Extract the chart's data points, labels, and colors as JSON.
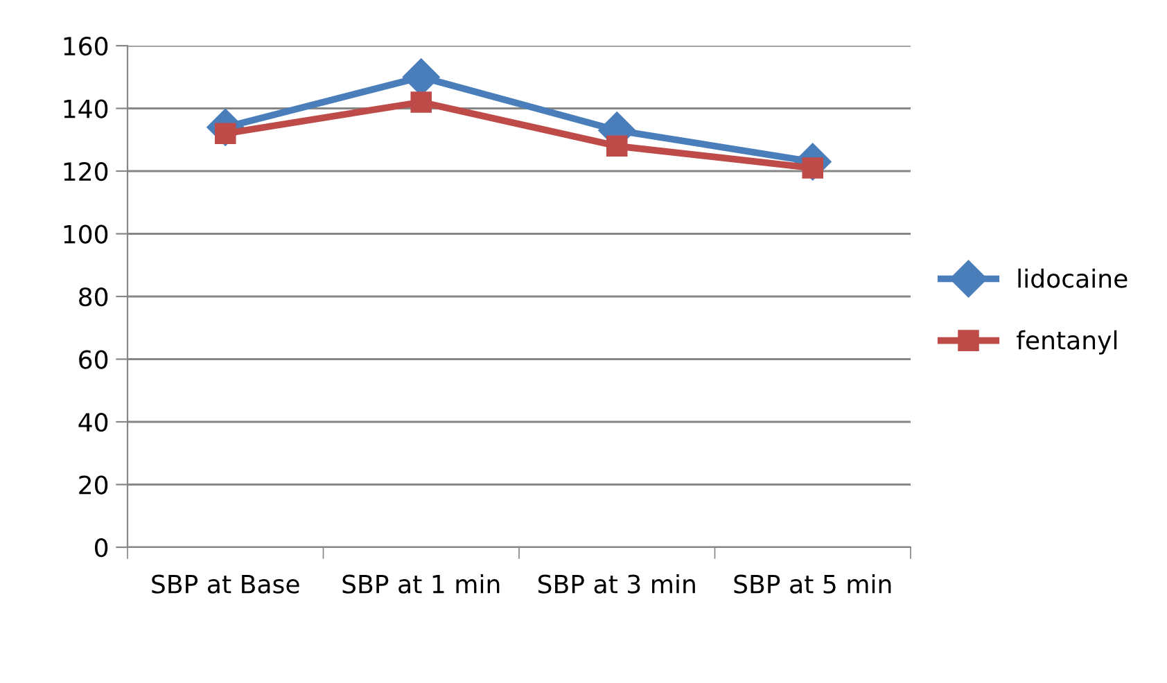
{
  "chart_data": {
    "type": "line",
    "categories": [
      "SBP at Base",
      "SBP at 1 min",
      "SBP at 3 min",
      "SBP at 5 min"
    ],
    "series": [
      {
        "name": "lidocaine",
        "color": "#4a7ebb",
        "marker": "diamond",
        "values": [
          134,
          150,
          133,
          123
        ]
      },
      {
        "name": "fentanyl",
        "color": "#be4b48",
        "marker": "square",
        "values": [
          132,
          142,
          128,
          121
        ]
      }
    ],
    "ylim": [
      0,
      160
    ],
    "yticks": [
      0,
      20,
      40,
      60,
      80,
      100,
      120,
      140,
      160
    ],
    "grid": "y",
    "legend": "right",
    "line_style": "solid"
  }
}
